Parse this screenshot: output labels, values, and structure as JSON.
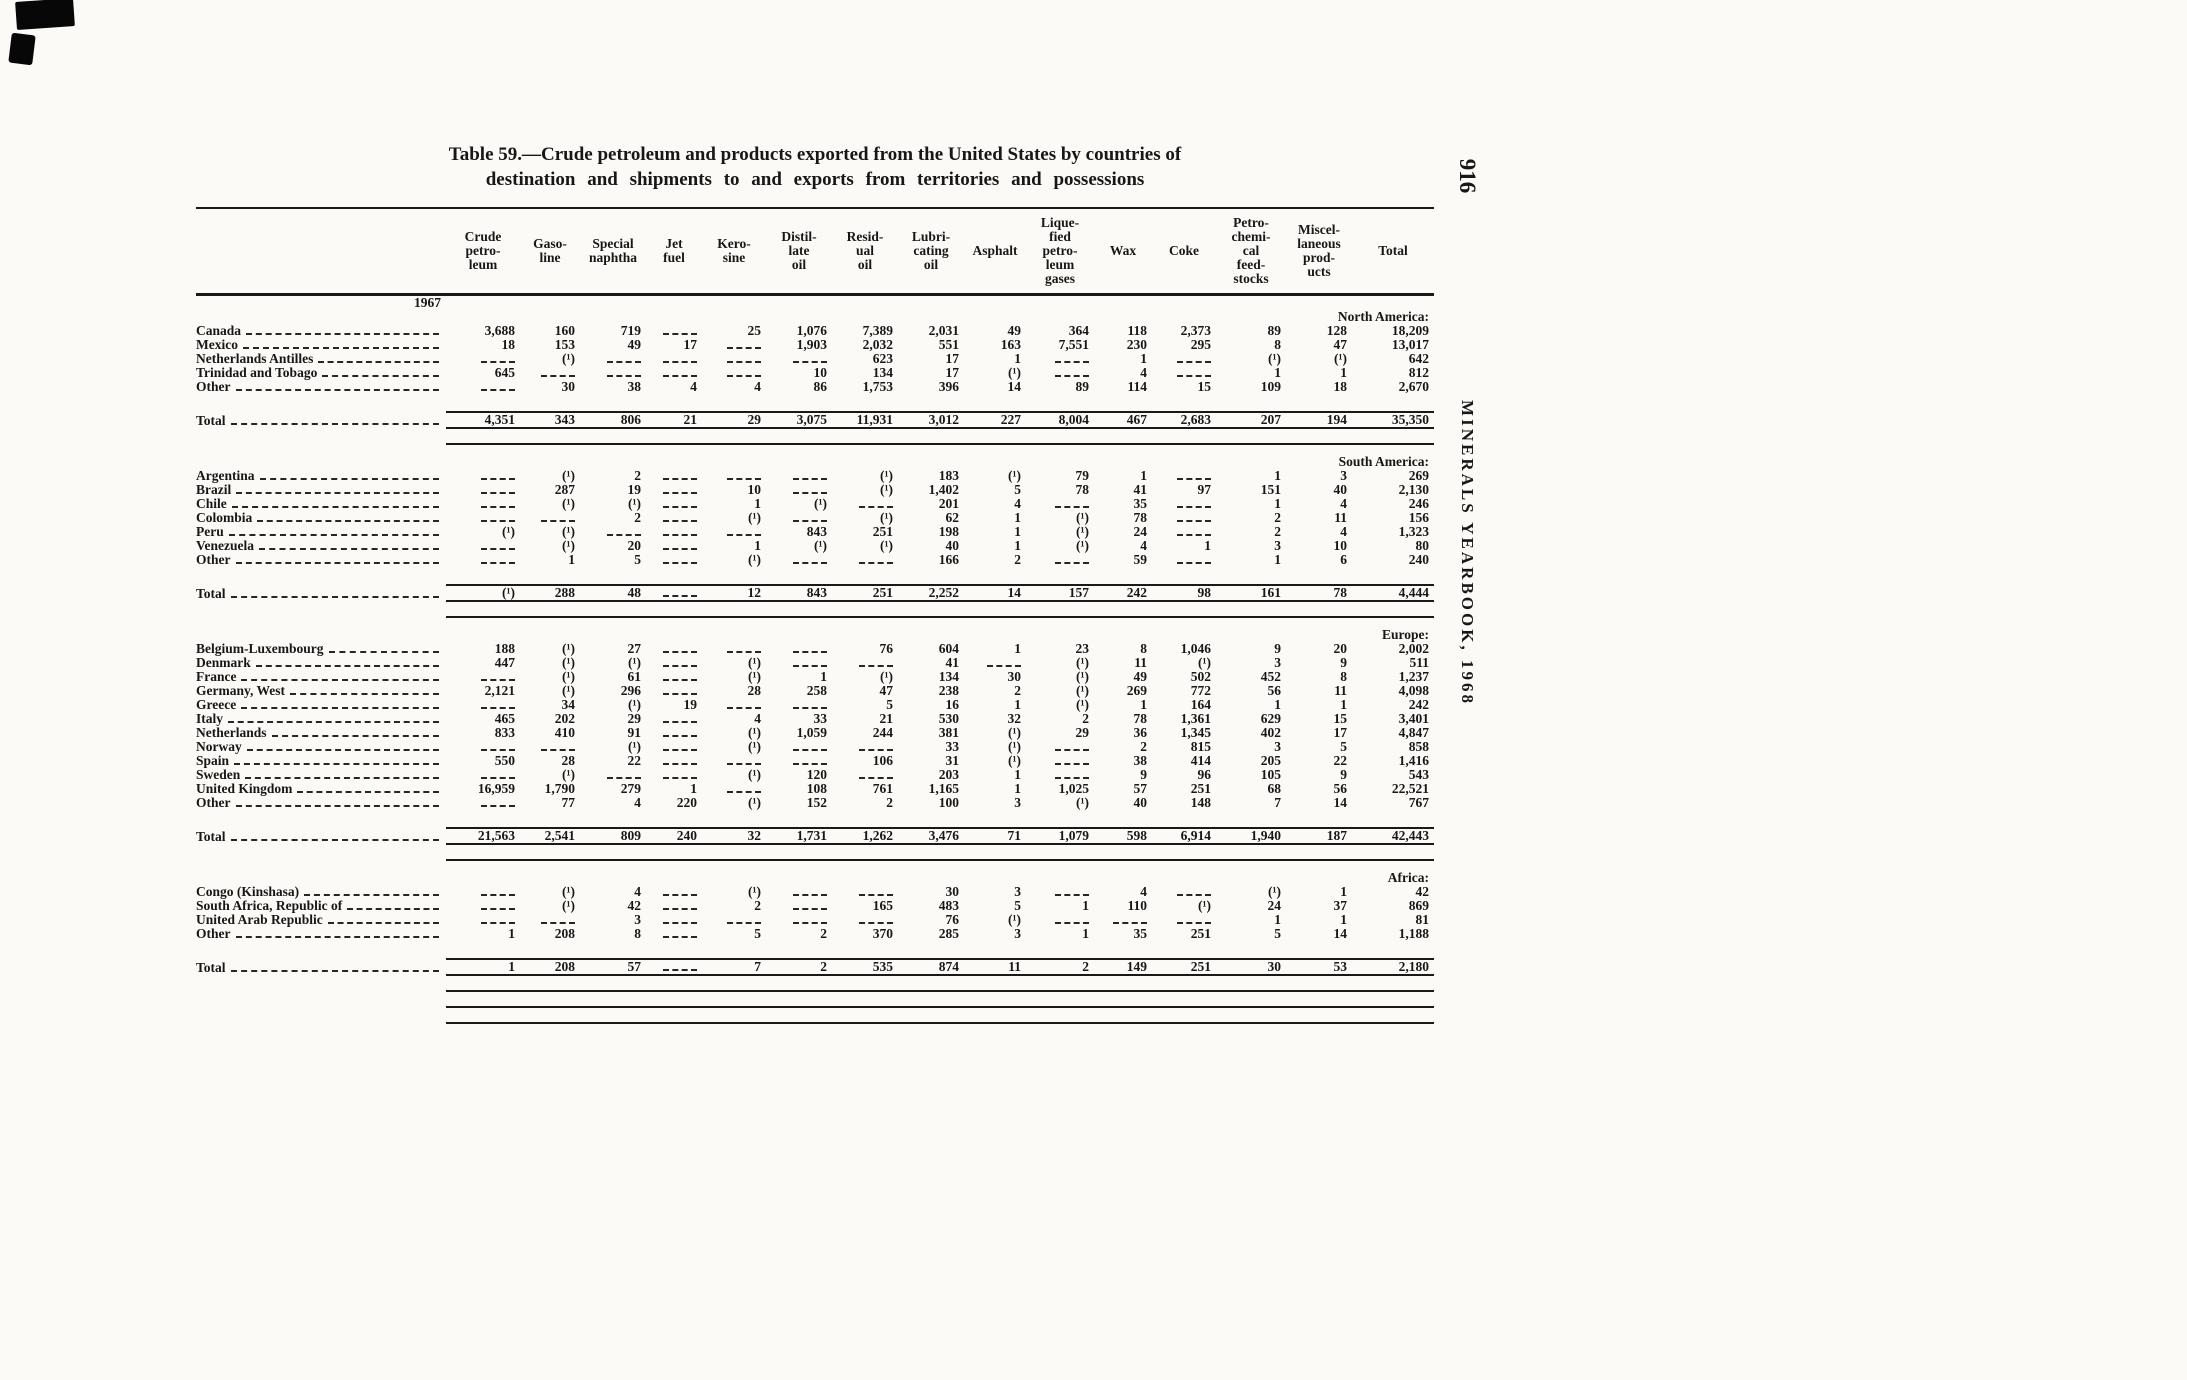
{
  "page": {
    "page_number": "916",
    "margin_text": "MINERALS YEARBOOK, 1968",
    "title_line1": "Table 59.—Crude petroleum and products exported from the United States by countries of",
    "title_line2": "destination and shipments to and exports from territories and possessions",
    "year_label": "1967",
    "empty_cell_marker": "------",
    "footnote_marker": "(¹)"
  },
  "table": {
    "columns": [
      "Crude\npetro-\nleum",
      "Gaso-\nline",
      "Special\nnaphtha",
      "Jet\nfuel",
      "Kero-\nsine",
      "Distil-\nlate\noil",
      "Resid-\nual\noil",
      "Lubri-\ncating\noil",
      "Asphalt",
      "Lique-\nfied\npetro-\nleum\ngases",
      "Wax",
      "Coke",
      "Petro-\nchemi-\ncal\nfeed-\nstocks",
      "Miscel-\nlaneous\nprod-\nucts",
      "Total"
    ],
    "sections": [
      {
        "name": "North America:",
        "rows": [
          {
            "label": "Canada",
            "values": [
              "3,688",
              "160",
              "719",
              "",
              "25",
              "1,076",
              "7,389",
              "2,031",
              "49",
              "364",
              "118",
              "2,373",
              "89",
              "128",
              "18,209"
            ]
          },
          {
            "label": "Mexico",
            "values": [
              "18",
              "153",
              "49",
              "17",
              "",
              "1,903",
              "2,032",
              "551",
              "163",
              "7,551",
              "230",
              "295",
              "8",
              "47",
              "13,017"
            ]
          },
          {
            "label": "Netherlands Antilles",
            "values": [
              "",
              "(¹)",
              "",
              "",
              "",
              "",
              "623",
              "17",
              "1",
              "",
              "1",
              "",
              "(¹)",
              "(¹)",
              "642"
            ]
          },
          {
            "label": "Trinidad and Tobago",
            "values": [
              "645",
              "",
              "",
              "",
              "",
              "10",
              "134",
              "17",
              "(¹)",
              "",
              "4",
              "",
              "1",
              "1",
              "812"
            ]
          },
          {
            "label": "Other",
            "values": [
              "",
              "30",
              "38",
              "4",
              "4",
              "86",
              "1,753",
              "396",
              "14",
              "89",
              "114",
              "15",
              "109",
              "18",
              "2,670"
            ]
          }
        ],
        "total": {
          "label": "Total",
          "values": [
            "4,351",
            "343",
            "806",
            "21",
            "29",
            "3,075",
            "11,931",
            "3,012",
            "227",
            "8,004",
            "467",
            "2,683",
            "207",
            "194",
            "35,350"
          ]
        }
      },
      {
        "name": "South America:",
        "rows": [
          {
            "label": "Argentina",
            "values": [
              "",
              "(¹)",
              "2",
              "",
              "",
              "",
              "(¹)",
              "183",
              "(¹)",
              "79",
              "1",
              "",
              "1",
              "3",
              "269"
            ]
          },
          {
            "label": "Brazil",
            "values": [
              "",
              "287",
              "19",
              "",
              "10",
              "",
              "(¹)",
              "1,402",
              "5",
              "78",
              "41",
              "97",
              "151",
              "40",
              "2,130"
            ]
          },
          {
            "label": "Chile",
            "values": [
              "",
              "(¹)",
              "(¹)",
              "",
              "1",
              "(¹)",
              "",
              "201",
              "4",
              "",
              "35",
              "",
              "1",
              "4",
              "246"
            ]
          },
          {
            "label": "Colombia",
            "values": [
              "",
              "",
              "2",
              "",
              "(¹)",
              "",
              "(¹)",
              "62",
              "1",
              "(¹)",
              "78",
              "",
              "2",
              "11",
              "156"
            ]
          },
          {
            "label": "Peru",
            "values": [
              "(¹)",
              "(¹)",
              "",
              "",
              "",
              "843",
              "251",
              "198",
              "1",
              "(¹)",
              "24",
              "",
              "2",
              "4",
              "1,323"
            ]
          },
          {
            "label": "Venezuela",
            "values": [
              "",
              "(¹)",
              "20",
              "",
              "1",
              "(¹)",
              "(¹)",
              "40",
              "1",
              "(¹)",
              "4",
              "1",
              "3",
              "10",
              "80"
            ]
          },
          {
            "label": "Other",
            "values": [
              "",
              "1",
              "5",
              "",
              "(¹)",
              "",
              "",
              "166",
              "2",
              "",
              "59",
              "",
              "1",
              "6",
              "240"
            ]
          }
        ],
        "total": {
          "label": "Total",
          "values": [
            "(¹)",
            "288",
            "48",
            "",
            "12",
            "843",
            "251",
            "2,252",
            "14",
            "157",
            "242",
            "98",
            "161",
            "78",
            "4,444"
          ]
        }
      },
      {
        "name": "Europe:",
        "rows": [
          {
            "label": "Belgium-Luxembourg",
            "values": [
              "188",
              "(¹)",
              "27",
              "",
              "",
              "",
              "76",
              "604",
              "1",
              "23",
              "8",
              "1,046",
              "9",
              "20",
              "2,002"
            ]
          },
          {
            "label": "Denmark",
            "values": [
              "447",
              "(¹)",
              "(¹)",
              "",
              "(¹)",
              "",
              "",
              "41",
              "",
              "(¹)",
              "11",
              "(¹)",
              "3",
              "9",
              "511"
            ]
          },
          {
            "label": "France",
            "values": [
              "",
              "(¹)",
              "61",
              "",
              "(¹)",
              "1",
              "(¹)",
              "134",
              "30",
              "(¹)",
              "49",
              "502",
              "452",
              "8",
              "1,237"
            ]
          },
          {
            "label": "Germany, West",
            "values": [
              "2,121",
              "(¹)",
              "296",
              "",
              "28",
              "258",
              "47",
              "238",
              "2",
              "(¹)",
              "269",
              "772",
              "56",
              "11",
              "4,098"
            ]
          },
          {
            "label": "Greece",
            "values": [
              "",
              "34",
              "(¹)",
              "19",
              "",
              "",
              "5",
              "16",
              "1",
              "(¹)",
              "1",
              "164",
              "1",
              "1",
              "242"
            ]
          },
          {
            "label": "Italy",
            "values": [
              "465",
              "202",
              "29",
              "",
              "4",
              "33",
              "21",
              "530",
              "32",
              "2",
              "78",
              "1,361",
              "629",
              "15",
              "3,401"
            ]
          },
          {
            "label": "Netherlands",
            "values": [
              "833",
              "410",
              "91",
              "",
              "(¹)",
              "1,059",
              "244",
              "381",
              "(¹)",
              "29",
              "36",
              "1,345",
              "402",
              "17",
              "4,847"
            ]
          },
          {
            "label": "Norway",
            "values": [
              "",
              "",
              "(¹)",
              "",
              "(¹)",
              "",
              "",
              "33",
              "(¹)",
              "",
              "2",
              "815",
              "3",
              "5",
              "858"
            ]
          },
          {
            "label": "Spain",
            "values": [
              "550",
              "28",
              "22",
              "",
              "",
              "",
              "106",
              "31",
              "(¹)",
              "",
              "38",
              "414",
              "205",
              "22",
              "1,416"
            ]
          },
          {
            "label": "Sweden",
            "values": [
              "",
              "(¹)",
              "",
              "",
              "(¹)",
              "120",
              "",
              "203",
              "1",
              "",
              "9",
              "96",
              "105",
              "9",
              "543"
            ]
          },
          {
            "label": "United Kingdom",
            "values": [
              "16,959",
              "1,790",
              "279",
              "1",
              "",
              "108",
              "761",
              "1,165",
              "1",
              "1,025",
              "57",
              "251",
              "68",
              "56",
              "22,521"
            ]
          },
          {
            "label": "Other",
            "values": [
              "",
              "77",
              "4",
              "220",
              "(¹)",
              "152",
              "2",
              "100",
              "3",
              "(¹)",
              "40",
              "148",
              "7",
              "14",
              "767"
            ]
          }
        ],
        "total": {
          "label": "Total",
          "values": [
            "21,563",
            "2,541",
            "809",
            "240",
            "32",
            "1,731",
            "1,262",
            "3,476",
            "71",
            "1,079",
            "598",
            "6,914",
            "1,940",
            "187",
            "42,443"
          ]
        }
      },
      {
        "name": "Africa:",
        "rows": [
          {
            "label": "Congo (Kinshasa)",
            "values": [
              "",
              "(¹)",
              "4",
              "",
              "(¹)",
              "",
              "",
              "30",
              "3",
              "",
              "4",
              "",
              "(¹)",
              "1",
              "42"
            ]
          },
          {
            "label": "South Africa, Republic of",
            "values": [
              "",
              "(¹)",
              "42",
              "",
              "2",
              "",
              "165",
              "483",
              "5",
              "1",
              "110",
              "(¹)",
              "24",
              "37",
              "869"
            ]
          },
          {
            "label": "United Arab Republic",
            "values": [
              "",
              "",
              "3",
              "",
              "",
              "",
              "",
              "76",
              "(¹)",
              "",
              "",
              "",
              "1",
              "1",
              "81"
            ]
          },
          {
            "label": "Other",
            "values": [
              "1",
              "208",
              "8",
              "",
              "5",
              "2",
              "370",
              "285",
              "3",
              "1",
              "35",
              "251",
              "5",
              "14",
              "1,188"
            ]
          }
        ],
        "total": {
          "label": "Total",
          "values": [
            "1",
            "208",
            "57",
            "",
            "7",
            "2",
            "535",
            "874",
            "11",
            "2",
            "149",
            "251",
            "30",
            "53",
            "2,180"
          ]
        }
      }
    ]
  }
}
